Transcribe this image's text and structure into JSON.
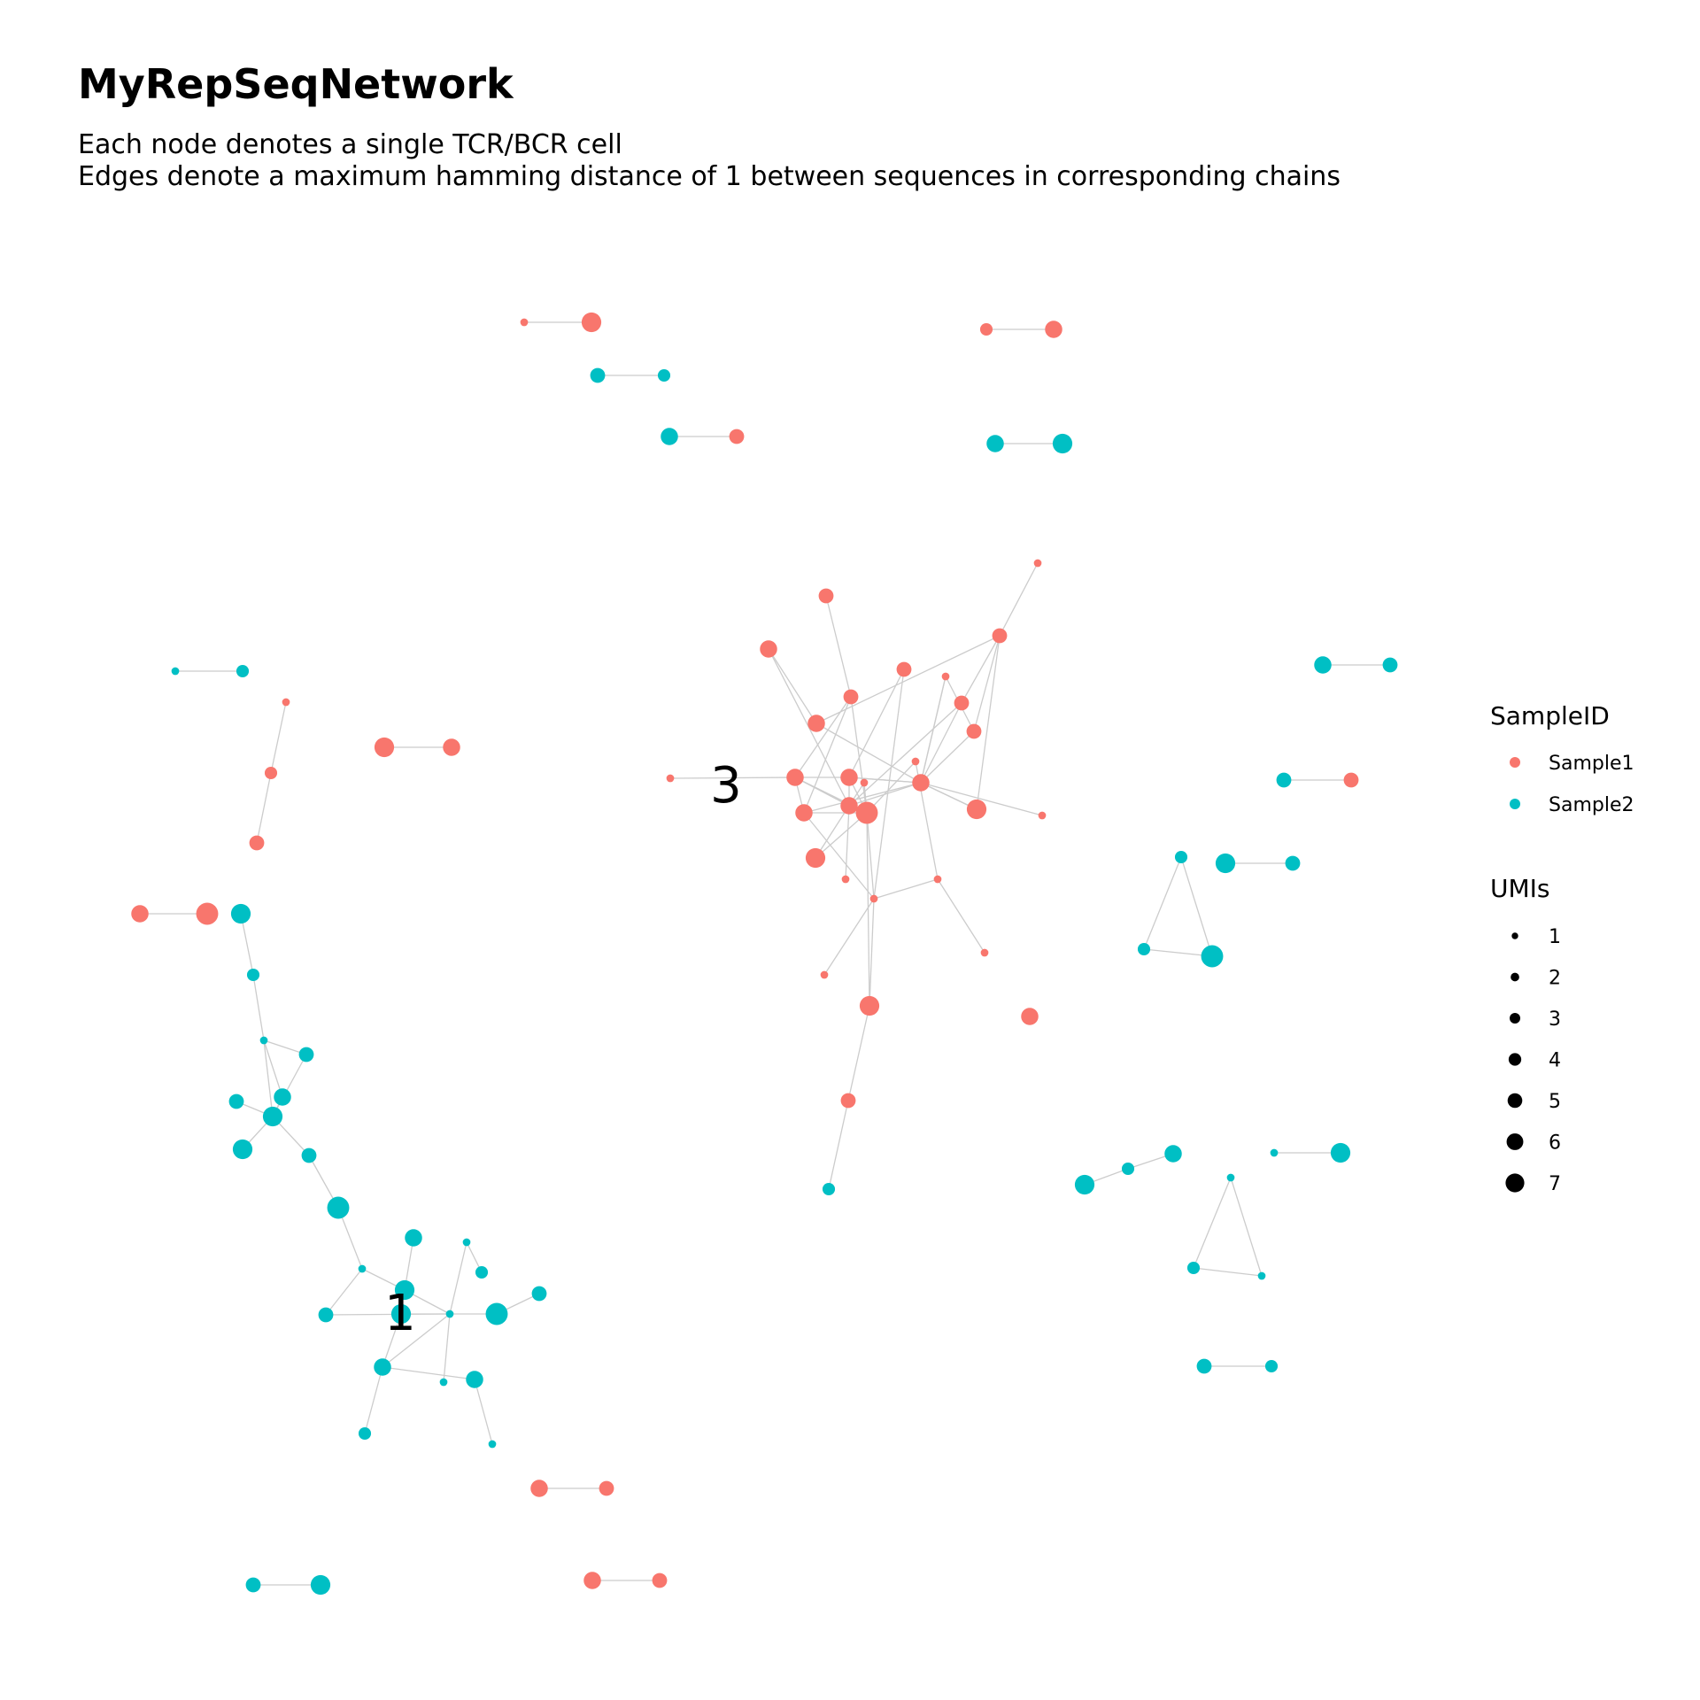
{
  "chart_data": {
    "type": "network",
    "title": "MyRepSeqNetwork",
    "subtitle_lines": [
      "Each node denotes a single TCR/BCR cell",
      "Edges denote a maximum hamming distance of 1 between sequences in corresponding chains"
    ],
    "legend": {
      "placement": "right",
      "color_title": "SampleID",
      "color_entries": [
        {
          "name": "Sample1",
          "color": "#F8766D"
        },
        {
          "name": "Sample2",
          "color": "#00BFC4"
        }
      ],
      "size_title": "UMIs",
      "size_entries": [
        1,
        2,
        3,
        4,
        5,
        6,
        7
      ]
    },
    "cluster_labels": [
      "3",
      "1"
    ],
    "edge_color": "#cccccc",
    "grid": false
  }
}
